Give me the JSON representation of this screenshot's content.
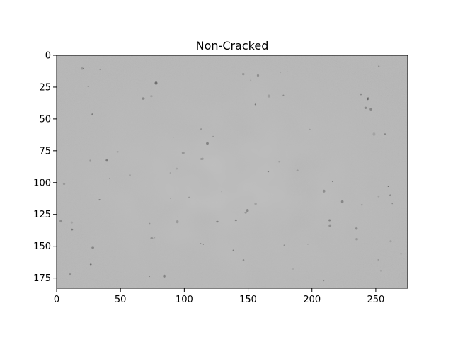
{
  "figure": {
    "title": "Non-Cracked"
  },
  "image_axes": {
    "x_ticks": [
      "0",
      "50",
      "100",
      "150",
      "200",
      "250"
    ],
    "x_tick_values": [
      0,
      50,
      100,
      150,
      200,
      250
    ],
    "y_ticks": [
      "0",
      "25",
      "50",
      "75",
      "100",
      "125",
      "150",
      "175"
    ],
    "y_tick_values": [
      0,
      25,
      50,
      75,
      100,
      125,
      150,
      175
    ],
    "x_range": [
      0,
      275
    ],
    "y_range": [
      0,
      183
    ]
  },
  "image": {
    "description_color_base": "#b9b9b9",
    "description_color_light": "#c8c8c8",
    "description_color_dark": "#9a9a9a"
  }
}
